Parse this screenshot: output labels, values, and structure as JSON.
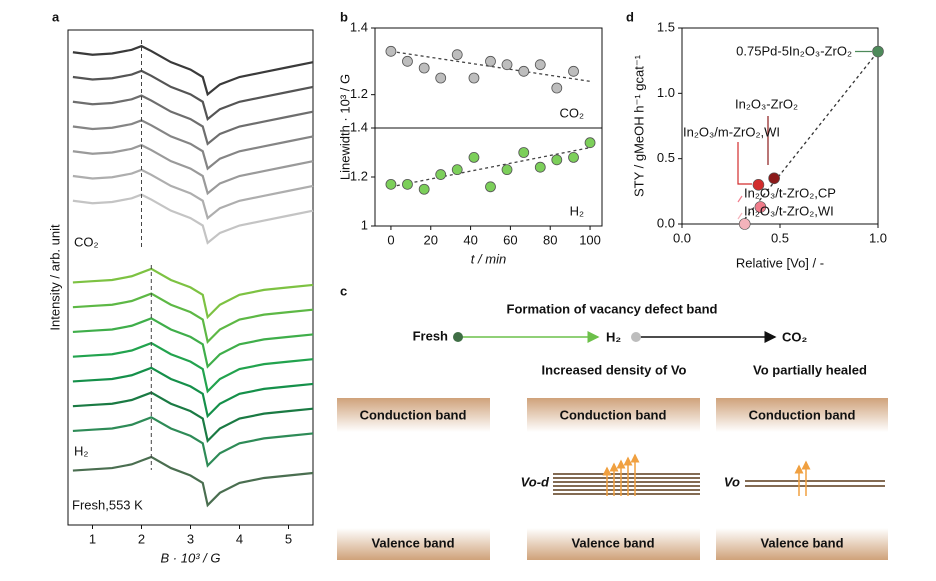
{
  "chart_data": [
    {
      "type": "line",
      "label": "a",
      "xlabel": "B · 10³ / G",
      "ylabel": "Intensity / arb. unit",
      "xlim": [
        0.5,
        5.5
      ],
      "xticks": [
        1,
        2,
        3,
        4,
        5
      ],
      "ylim": [
        -1.5,
        18.5
      ],
      "x": [
        0.6,
        1.0,
        1.4,
        1.8,
        2.0,
        2.2,
        2.6,
        3.0,
        3.25,
        3.35,
        3.6,
        4.0,
        4.5,
        5.0,
        5.5
      ],
      "peak_lines": [
        2.0,
        2.2
      ],
      "annotations": [
        "CO₂",
        "H₂",
        "Fresh,553 K"
      ],
      "series": [
        {
          "color": "#3a3a3a",
          "values": [
            17.6,
            17.5,
            17.55,
            17.7,
            17.85,
            17.65,
            17.2,
            16.9,
            16.6,
            15.9,
            16.3,
            16.6,
            16.8,
            17,
            17.2
          ]
        },
        {
          "color": "#555555",
          "values": [
            16.6,
            16.5,
            16.55,
            16.7,
            16.85,
            16.65,
            16.2,
            15.9,
            15.6,
            14.9,
            15.3,
            15.6,
            15.8,
            16,
            16.2
          ]
        },
        {
          "color": "#6e6e6e",
          "values": [
            15.6,
            15.5,
            15.55,
            15.7,
            15.85,
            15.65,
            15.2,
            14.9,
            14.6,
            13.9,
            14.3,
            14.6,
            14.8,
            15,
            15.2
          ]
        },
        {
          "color": "#858585",
          "values": [
            14.6,
            14.5,
            14.55,
            14.7,
            14.85,
            14.65,
            14.2,
            13.9,
            13.6,
            12.9,
            13.3,
            13.6,
            13.8,
            14,
            14.2
          ]
        },
        {
          "color": "#9a9a9a",
          "values": [
            13.6,
            13.5,
            13.55,
            13.7,
            13.85,
            13.65,
            13.2,
            12.9,
            12.6,
            11.9,
            12.3,
            12.6,
            12.8,
            13,
            13.2
          ]
        },
        {
          "color": "#aeaeae",
          "values": [
            12.6,
            12.5,
            12.55,
            12.7,
            12.85,
            12.65,
            12.2,
            11.9,
            11.6,
            10.9,
            11.3,
            11.6,
            11.8,
            12,
            12.2
          ]
        },
        {
          "color": "#c4c4c4",
          "values": [
            11.6,
            11.5,
            11.55,
            11.7,
            11.85,
            11.65,
            11.2,
            10.9,
            10.6,
            9.9,
            10.3,
            10.6,
            10.8,
            11,
            11.2
          ]
        },
        {
          "color": "#7dc242",
          "values": [
            8.3,
            8.35,
            8.4,
            8.55,
            8.7,
            8.85,
            8.4,
            8.1,
            7.8,
            6.9,
            7.4,
            7.8,
            8,
            8.1,
            8.2
          ]
        },
        {
          "color": "#5db845",
          "values": [
            7.3,
            7.35,
            7.4,
            7.55,
            7.7,
            7.85,
            7.4,
            7.1,
            6.8,
            5.9,
            6.4,
            6.8,
            7,
            7.1,
            7.2
          ]
        },
        {
          "color": "#3fae4a",
          "values": [
            6.3,
            6.35,
            6.4,
            6.55,
            6.7,
            6.85,
            6.4,
            6.1,
            5.8,
            4.9,
            5.4,
            5.8,
            6,
            6.1,
            6.2
          ]
        },
        {
          "color": "#22a34e",
          "values": [
            5.3,
            5.35,
            5.4,
            5.55,
            5.7,
            5.85,
            5.4,
            5.1,
            4.8,
            3.9,
            4.4,
            4.8,
            5,
            5.1,
            5.2
          ]
        },
        {
          "color": "#15904a",
          "values": [
            4.3,
            4.35,
            4.4,
            4.55,
            4.7,
            4.85,
            4.4,
            4.1,
            3.8,
            2.9,
            3.4,
            3.8,
            4,
            4.1,
            4.2
          ]
        },
        {
          "color": "#1a7a43",
          "values": [
            3.3,
            3.35,
            3.4,
            3.55,
            3.7,
            3.85,
            3.4,
            3.1,
            2.8,
            1.9,
            2.4,
            2.8,
            3,
            3.1,
            3.2
          ]
        },
        {
          "color": "#2e8b57",
          "values": [
            2.3,
            2.35,
            2.4,
            2.55,
            2.7,
            2.85,
            2.4,
            2.1,
            1.8,
            0.9,
            1.4,
            1.8,
            2,
            2.1,
            2.2
          ]
        },
        {
          "color": "#4a6e50",
          "values": [
            0.7,
            0.75,
            0.8,
            0.95,
            1.1,
            1.25,
            0.8,
            0.5,
            0.2,
            -0.7,
            -0.2,
            0.2,
            0.4,
            0.5,
            0.6
          ]
        }
      ]
    },
    {
      "type": "scatter",
      "label": "b",
      "xlabel": "t / min",
      "ylabel": "Linewidth · 10³ / G",
      "xlim": [
        -8,
        106
      ],
      "xticks": [
        0,
        20,
        40,
        60,
        80,
        100
      ],
      "panels": [
        {
          "name": "CO₂",
          "color": "#bdbdbd",
          "ylim": [
            1.1,
            1.4
          ],
          "yticks": [
            1.2,
            1.4
          ],
          "x": [
            0,
            8.3,
            16.7,
            25,
            33.3,
            41.7,
            50,
            58.3,
            66.7,
            75,
            83.3,
            91.7
          ],
          "values": [
            1.33,
            1.3,
            1.28,
            1.25,
            1.32,
            1.25,
            1.3,
            1.29,
            1.27,
            1.29,
            1.22,
            1.27
          ],
          "trend_x": [
            0,
            100
          ],
          "trend_y": [
            1.33,
            1.24
          ]
        },
        {
          "name": "H₂",
          "color": "#7ccf5a",
          "ylim": [
            1.0,
            1.4
          ],
          "yticks": [
            1.0,
            1.2,
            1.4
          ],
          "x": [
            0,
            8.3,
            16.7,
            25,
            33.3,
            41.7,
            50,
            58.3,
            66.7,
            75,
            83.3,
            91.7,
            100
          ],
          "values": [
            1.17,
            1.17,
            1.15,
            1.21,
            1.23,
            1.28,
            1.16,
            1.23,
            1.3,
            1.24,
            1.27,
            1.28,
            1.34
          ],
          "trend_x": [
            0,
            100
          ],
          "trend_y": [
            1.16,
            1.32
          ]
        }
      ]
    },
    {
      "type": "scatter",
      "label": "d",
      "xlabel": "Relative [Vo] / -",
      "ylabel": "STY / gMeOH h⁻¹ gcat⁻¹",
      "xlim": [
        0,
        1
      ],
      "xticks": [
        {
          "value": 0,
          "label": "0.0"
        },
        0.5,
        {
          "value": 1,
          "label": "1.0"
        }
      ],
      "ylim": [
        0,
        1.5
      ],
      "yticks": [
        {
          "value": 0,
          "label": "0.0"
        },
        0.5,
        {
          "value": 1,
          "label": "1.0"
        },
        1.5
      ],
      "trend_x": [
        0.3,
        1.0
      ],
      "trend_y": [
        0,
        1.32
      ],
      "points": [
        {
          "name": "0.75Pd-5In₂O₃-ZrO₂",
          "color": "#4e8a5a",
          "x": 1.0,
          "y": 1.32
        },
        {
          "name": "In₂O₃-ZrO₂",
          "color": "#8b1a1a",
          "x": 0.47,
          "y": 0.35
        },
        {
          "name": "In₂O₃/m-ZrO₂,WI",
          "color": "#d22c2c",
          "x": 0.39,
          "y": 0.3
        },
        {
          "name": "In₂O₃/t-ZrO₂,CP",
          "color": "#f07b8a",
          "x": 0.4,
          "y": 0.13
        },
        {
          "name": "In₂O₃/t-ZrO₂,WI",
          "color": "#f4b3bb",
          "x": 0.32,
          "y": 0
        }
      ]
    }
  ],
  "diagram": {
    "label": "c",
    "title": "Formation of vacancy defect band",
    "steps": [
      "Fresh",
      "H₂",
      "CO₂"
    ],
    "headings": [
      "Increased density of Vo",
      "Vo partially healed"
    ],
    "conduction": "Conduction band",
    "valence": "Valence band",
    "defects": [
      "Vo-d",
      "Vo"
    ]
  }
}
